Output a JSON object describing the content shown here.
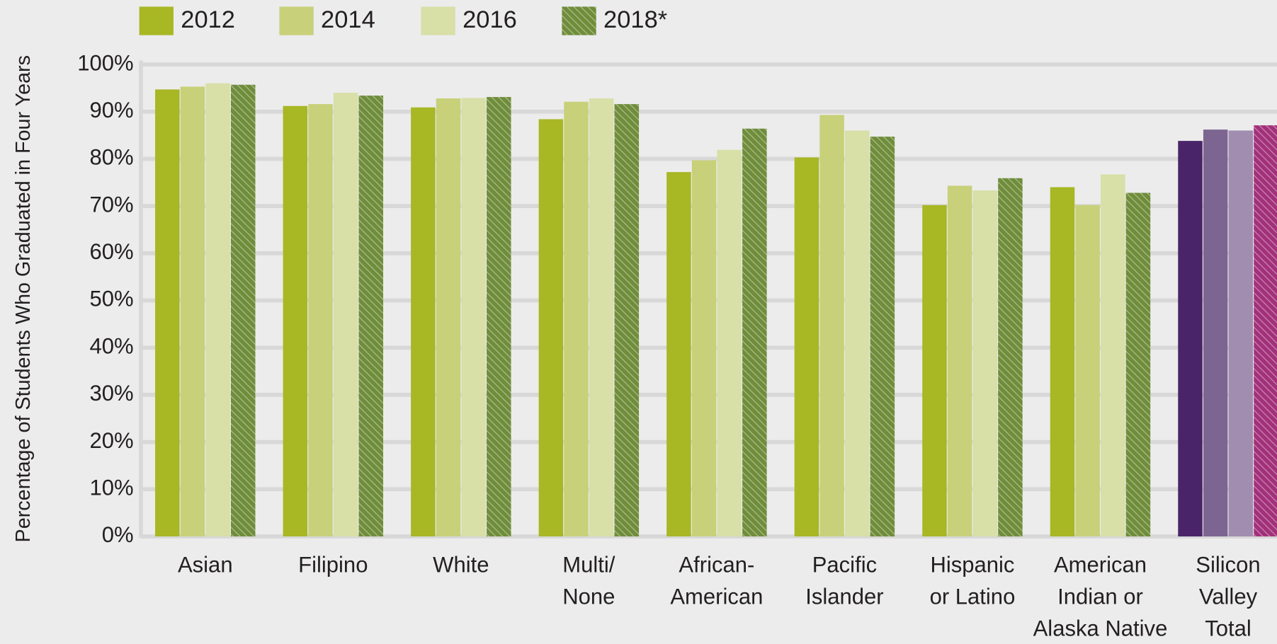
{
  "chart_data": {
    "type": "bar",
    "y_label": "Percentage of Students Who Graduated in Four Years",
    "categories": [
      [
        "Asian"
      ],
      [
        "Filipino"
      ],
      [
        "White"
      ],
      [
        "Multi/",
        "None"
      ],
      [
        "African-",
        "American"
      ],
      [
        "Pacific",
        "Islander"
      ],
      [
        "Hispanic",
        "or Latino"
      ],
      [
        "American",
        "Indian or",
        "Alaska Native"
      ],
      [
        "Silicon",
        "Valley",
        "Total"
      ]
    ],
    "series": [
      {
        "name": "2012",
        "color": "#a8b724",
        "hatch": false,
        "colors": [
          "#a8b724",
          "#a8b724",
          "#a8b724",
          "#a8b724",
          "#a8b724",
          "#a8b724",
          "#a8b724",
          "#a8b724",
          "#4a2468"
        ],
        "values": [
          94.7,
          91.2,
          90.9,
          88.4,
          77.2,
          80.3,
          70.2,
          74.0,
          83.8
        ]
      },
      {
        "name": "2014",
        "color": "#c8d07a",
        "hatch": false,
        "colors": [
          "#c8d07a",
          "#c8d07a",
          "#c8d07a",
          "#c8d07a",
          "#c8d07a",
          "#c8d07a",
          "#c8d07a",
          "#c8d07a",
          "#7d6591"
        ],
        "values": [
          95.3,
          91.6,
          92.8,
          92.1,
          79.7,
          89.3,
          74.3,
          70.2,
          86.2
        ]
      },
      {
        "name": "2016",
        "color": "#d8dfa7",
        "hatch": false,
        "colors": [
          "#d8dfa7",
          "#d8dfa7",
          "#d8dfa7",
          "#d8dfa7",
          "#d8dfa7",
          "#d8dfa7",
          "#d8dfa7",
          "#d8dfa7",
          "#a08db0"
        ],
        "values": [
          96.0,
          94.0,
          92.9,
          92.8,
          81.9,
          86.0,
          73.3,
          76.7,
          86.0
        ]
      },
      {
        "name": "2018*",
        "color": "#6f8d3a",
        "hatch": true,
        "colors": [
          "#6f8d3a",
          "#6f8d3a",
          "#6f8d3a",
          "#6f8d3a",
          "#6f8d3a",
          "#6f8d3a",
          "#6f8d3a",
          "#6f8d3a",
          "#a2317a"
        ],
        "values": [
          95.7,
          93.4,
          93.1,
          91.6,
          86.4,
          84.7,
          75.9,
          72.8,
          87.1
        ]
      }
    ],
    "ylim": [
      0,
      100
    ],
    "yticks": [
      {
        "value": 0,
        "label": "0%"
      },
      {
        "value": 10,
        "label": "10%"
      },
      {
        "value": 20,
        "label": "20%"
      },
      {
        "value": 30,
        "label": "30%"
      },
      {
        "value": 40,
        "label": "40%"
      },
      {
        "value": 50,
        "label": "50%"
      },
      {
        "value": 60,
        "label": "60%"
      },
      {
        "value": 70,
        "label": "70%"
      },
      {
        "value": 80,
        "label": "80%"
      },
      {
        "value": 90,
        "label": "90%"
      },
      {
        "value": 100,
        "label": "100%"
      }
    ],
    "grid": true,
    "legend": "top-left"
  }
}
